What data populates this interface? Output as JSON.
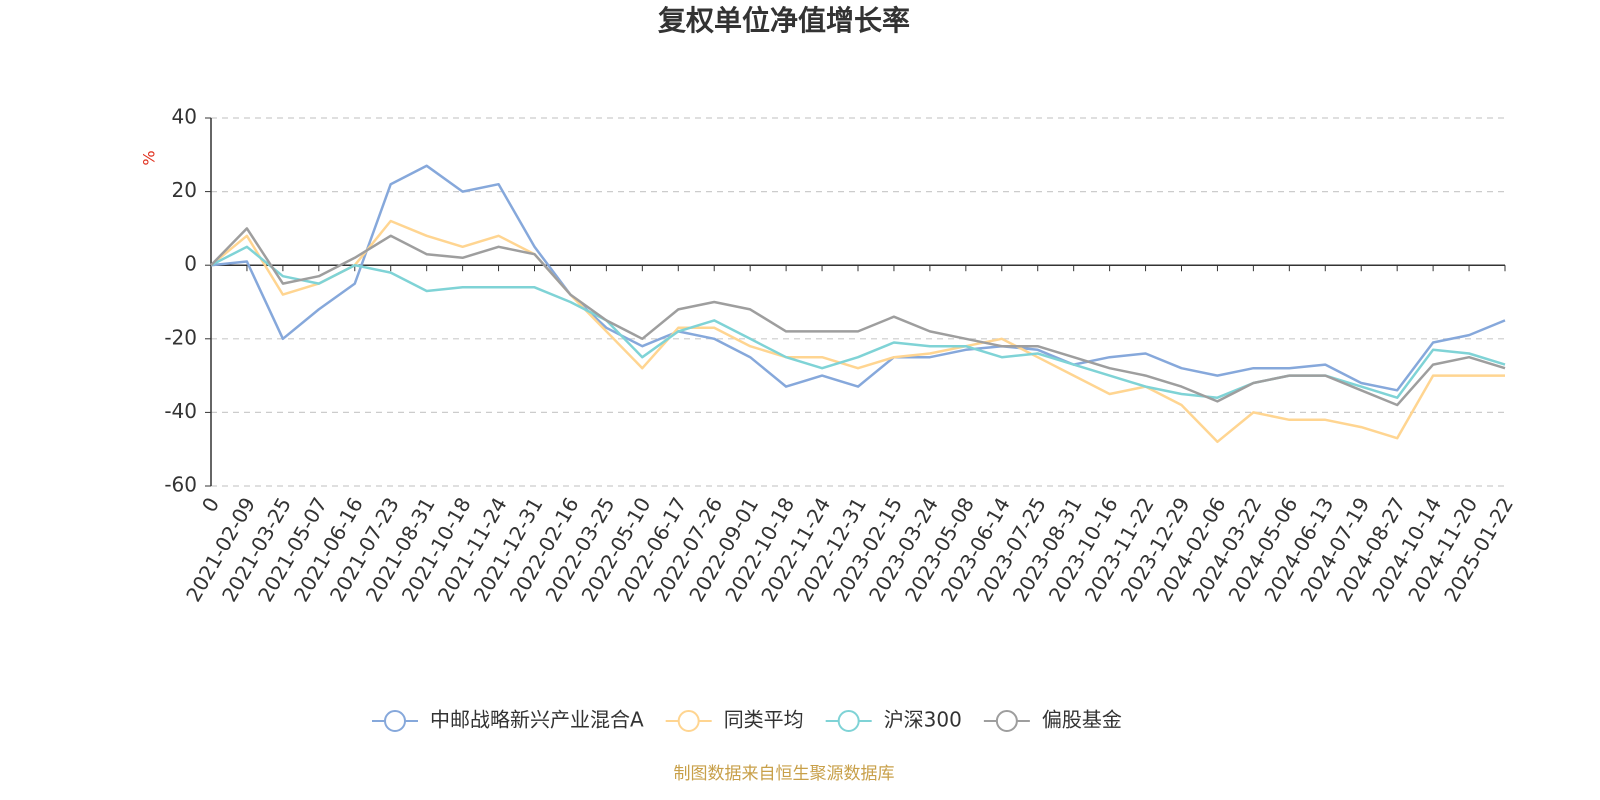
{
  "chart_data": {
    "type": "line",
    "title": "复权单位净值增长率",
    "y_label": "%",
    "source": "制图数据来自恒生聚源数据库",
    "categories": [
      "0",
      "2021-02-09",
      "2021-03-25",
      "2021-05-07",
      "2021-06-16",
      "2021-07-23",
      "2021-08-31",
      "2021-10-18",
      "2021-11-24",
      "2021-12-31",
      "2022-02-16",
      "2022-03-25",
      "2022-05-10",
      "2022-06-17",
      "2022-07-26",
      "2022-09-01",
      "2022-10-18",
      "2022-11-24",
      "2022-12-31",
      "2023-02-15",
      "2023-03-24",
      "2023-05-08",
      "2023-06-14",
      "2023-07-25",
      "2023-08-31",
      "2023-10-16",
      "2023-11-22",
      "2023-12-29",
      "2024-02-06",
      "2024-03-22",
      "2024-05-06",
      "2024-06-13",
      "2024-07-19",
      "2024-08-27",
      "2024-10-14",
      "2024-11-20",
      "2025-01-22"
    ],
    "series": [
      {
        "name": "中邮战略新兴产业混合A",
        "color": "#86a8db",
        "values": [
          0,
          1,
          -20,
          -12,
          -5,
          22,
          27,
          20,
          22,
          5,
          -8,
          -17,
          -22,
          -18,
          -20,
          -25,
          -33,
          -30,
          -33,
          -25,
          -25,
          -23,
          -22,
          -23,
          -27,
          -25,
          -24,
          -28,
          -30,
          -28,
          -28,
          -27,
          -32,
          -34,
          -21,
          -19,
          -15
        ]
      },
      {
        "name": "同类平均",
        "color": "#ffd591",
        "values": [
          0,
          8,
          -8,
          -5,
          0,
          12,
          8,
          5,
          8,
          3,
          -8,
          -18,
          -28,
          -17,
          -17,
          -22,
          -25,
          -25,
          -28,
          -25,
          -24,
          -22,
          -20,
          -25,
          -30,
          -35,
          -33,
          -38,
          -48,
          -40,
          -42,
          -42,
          -44,
          -47,
          -30,
          -30,
          -30
        ]
      },
      {
        "name": "沪深300",
        "color": "#7fd3d6",
        "values": [
          0,
          5,
          -3,
          -5,
          0,
          -2,
          -7,
          -6,
          -6,
          -6,
          -10,
          -15,
          -25,
          -18,
          -15,
          -20,
          -25,
          -28,
          -25,
          -21,
          -22,
          -22,
          -25,
          -24,
          -27,
          -30,
          -33,
          -35,
          -36,
          -32,
          -30,
          -30,
          -33,
          -36,
          -23,
          -24,
          -27
        ]
      },
      {
        "name": "偏股基金",
        "color": "#9e9e9e",
        "values": [
          0,
          10,
          -5,
          -3,
          2,
          8,
          3,
          2,
          5,
          3,
          -8,
          -15,
          -20,
          -12,
          -10,
          -12,
          -18,
          -18,
          -18,
          -14,
          -18,
          -20,
          -22,
          -22,
          -25,
          -28,
          -30,
          -33,
          -37,
          -32,
          -30,
          -30,
          -34,
          -38,
          -27,
          -25,
          -28
        ]
      }
    ],
    "ylim": [
      -60,
      40
    ],
    "yticks": [
      -60,
      -40,
      -20,
      0,
      20,
      40
    ],
    "grid": true
  }
}
